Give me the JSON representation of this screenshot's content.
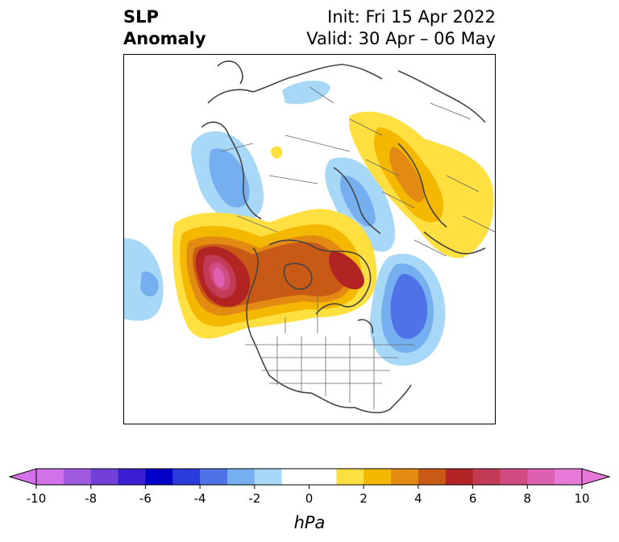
{
  "title": {
    "left_line1": "SLP",
    "left_line2": "Anomaly",
    "init": "Init: Fri 15 Apr 2022",
    "valid": "Valid: 30 Apr – 06 May"
  },
  "colorbar": {
    "unit": "hPa",
    "tick_labels": [
      "-10",
      "-8",
      "-6",
      "-4",
      "-2",
      "0",
      "2",
      "4",
      "6",
      "8",
      "10"
    ],
    "colors": [
      "#d272e8",
      "#a05ae0",
      "#7040d8",
      "#3a20d0",
      "#0000c8",
      "#2a3ddc",
      "#4d73e6",
      "#76aff0",
      "#a8d8f8",
      "#ffffff",
      "#ffffff",
      "#ffe040",
      "#f5b800",
      "#e38a12",
      "#c85a16",
      "#b22424",
      "#c23a55",
      "#d04c80",
      "#de60b0",
      "#e77ad8"
    ]
  },
  "map": {
    "land_color": "#ffffff",
    "coast_color": "#444444"
  }
}
